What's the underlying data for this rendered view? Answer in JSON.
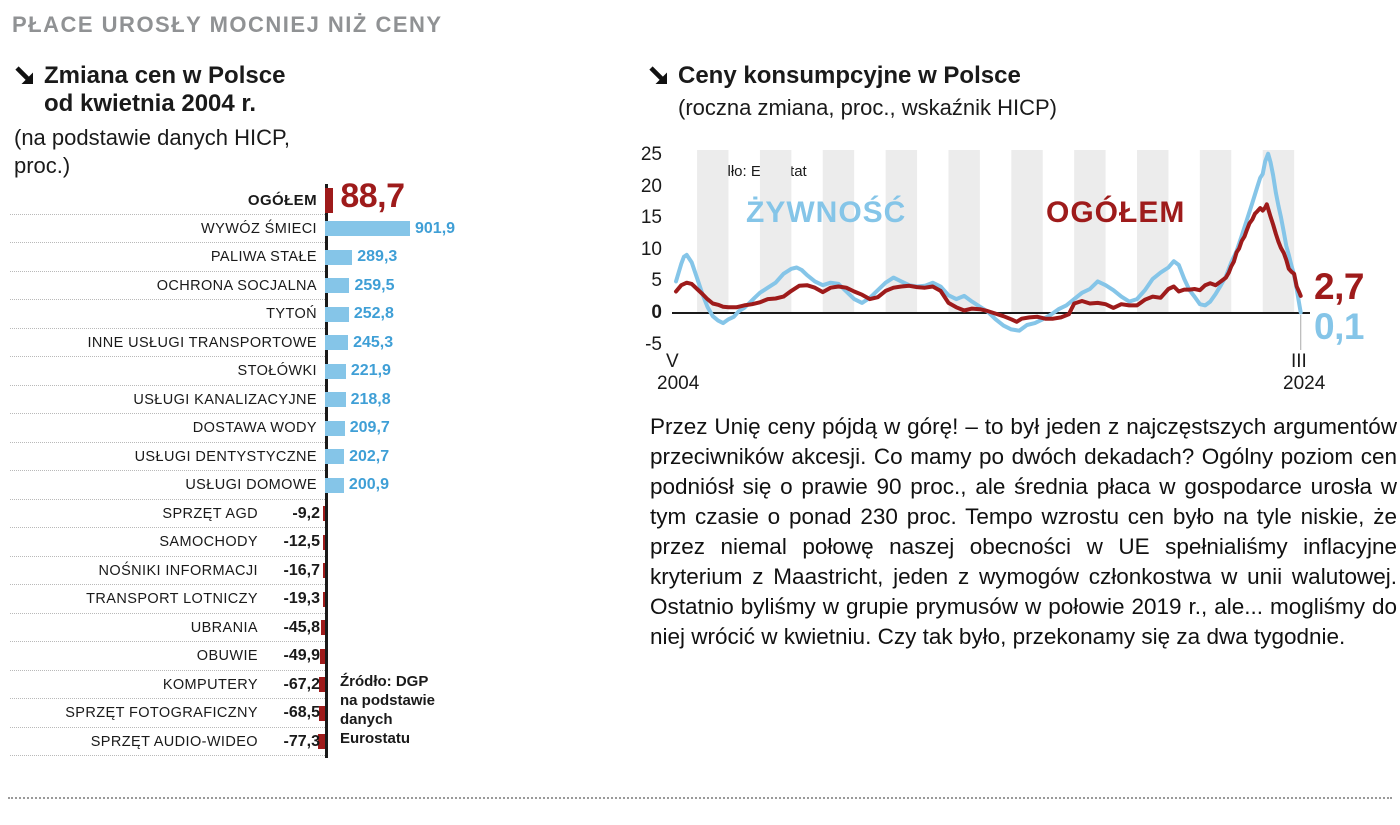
{
  "page_title": "PŁACE UROSŁY MOCNIEJ NIŻ CENY",
  "colors": {
    "bar_blue": "#85c5e8",
    "value_blue": "#3f9fd6",
    "dark_red": "#9e1b1b",
    "header_gray": "#909294",
    "axis_black": "#1a1a1a"
  },
  "left_chart": {
    "title_line1": "Zmiana cen w Polsce",
    "title_line2": "od kwietnia 2004 r.",
    "subtitle_line1": "(na podstawie danych HICP,",
    "subtitle_line2": "proc.)",
    "source_lines": [
      "Źródło: DGP",
      "na podstawie",
      "danych",
      "Eurostatu"
    ]
  },
  "right_chart": {
    "title": "Ceny konsumpcyjne w Polsce",
    "subtitle": "(roczna zmiana, proc., wskaźnik HICP)",
    "source": "Źródło: Eurostat",
    "label_food": "ŻYWNOŚĆ",
    "label_total": "OGÓŁEM",
    "end_value_total": "2,7",
    "end_value_food": "0,1",
    "x_start_top": "V",
    "x_start_bottom": "2004",
    "x_end_top": "III",
    "x_end_bottom": "2024"
  },
  "paragraph": "Przez Unię ceny pójdą w górę! – to był jeden z najczęstszych argumentów przeciwników akcesji. Co mamy po dwóch dekadach? Ogólny poziom cen podniósł się o prawie 90 proc., ale średnia płaca w gospodarce urosła w tym czasie o ponad 230 proc. Tempo wzrostu cen było na tyle niskie, że przez niemal połowę naszej obecności w UE spełnialiśmy inflacyjne kryterium z Maastricht, jeden z wymogów członkostwa w unii walutowej. Ostatnio byliśmy w grupie prymusów w połowie 2019 r., ale... mogliśmy do niej wrócić w kwietniu. Czy tak było, przekonamy się za dwa tygodnie.",
  "chart_data": [
    {
      "type": "bar",
      "orientation": "horizontal",
      "title": "Zmiana cen w Polsce od kwietnia 2004 r. (na podstawie danych HICP, proc.)",
      "source": "Źródło: DGP na podstawie danych Eurostatu",
      "highlight_category": "OGÓŁEM",
      "categories": [
        "OGÓŁEM",
        "WYWÓZ ŚMIECI",
        "PALIWA STAŁE",
        "OCHRONA SOCJALNA",
        "TYTOŃ",
        "INNE USŁUGI TRANSPORTOWE",
        "STOŁÓWKI",
        "USŁUGI KANALIZACYJNE",
        "DOSTAWA WODY",
        "USŁUGI DENTYSTYCZNE",
        "USŁUGI DOMOWE",
        "SPRZĘT AGD",
        "SAMOCHODY",
        "NOŚNIKI INFORMACJI",
        "TRANSPORT LOTNICZY",
        "UBRANIA",
        "OBUWIE",
        "KOMPUTERY",
        "SPRZĘT FOTOGRAFICZNY",
        "SPRZĘT AUDIO-WIDEO"
      ],
      "values": [
        88.7,
        901.9,
        289.3,
        259.5,
        252.8,
        245.3,
        221.9,
        218.8,
        209.7,
        202.7,
        200.9,
        -9.2,
        -12.5,
        -16.7,
        -19.3,
        -45.8,
        -49.9,
        -67.2,
        -68.5,
        -77.3
      ],
      "display_values": [
        "88,7",
        "901,9",
        "289,3",
        "259,5",
        "252,8",
        "245,3",
        "221,9",
        "218,8",
        "209,7",
        "202,7",
        "200,9",
        "-9,2",
        "-12,5",
        "-16,7",
        "-19,3",
        "-45,8",
        "-49,9",
        "-67,2",
        "-68,5",
        "-77,3"
      ]
    },
    {
      "type": "line",
      "title": "Ceny konsumpcyjne w Polsce",
      "subtitle": "(roczna zmiana, proc., wskaźnik HICP)",
      "source": "Źródło: Eurostat",
      "ylim": [
        -5,
        25
      ],
      "yticks": [
        25,
        20,
        15,
        10,
        5,
        0,
        -5
      ],
      "x_range": [
        "V 2004",
        "III 2024"
      ],
      "legend_position": "inside-top",
      "grid": "alternating-year-bands",
      "series": [
        {
          "name": "ŻYWNOŚĆ",
          "color": "#85c5e8",
          "end_label": "0,1",
          "points": [
            [
              2004.33,
              5.0
            ],
            [
              2004.5,
              7.8
            ],
            [
              2004.58,
              8.9
            ],
            [
              2004.67,
              9.2
            ],
            [
              2004.83,
              8.0
            ],
            [
              2005.0,
              5.5
            ],
            [
              2005.17,
              3.0
            ],
            [
              2005.33,
              1.0
            ],
            [
              2005.5,
              -0.5
            ],
            [
              2005.67,
              -1.2
            ],
            [
              2005.83,
              -1.6
            ],
            [
              2006.0,
              -1.0
            ],
            [
              2006.17,
              -0.6
            ],
            [
              2006.33,
              0.3
            ],
            [
              2006.5,
              0.8
            ],
            [
              2006.67,
              1.6
            ],
            [
              2006.83,
              2.4
            ],
            [
              2007.0,
              3.2
            ],
            [
              2007.25,
              4.0
            ],
            [
              2007.5,
              4.8
            ],
            [
              2007.75,
              6.2
            ],
            [
              2008.0,
              7.0
            ],
            [
              2008.17,
              7.2
            ],
            [
              2008.33,
              6.8
            ],
            [
              2008.5,
              6.0
            ],
            [
              2008.75,
              5.0
            ],
            [
              2009.0,
              4.4
            ],
            [
              2009.25,
              4.8
            ],
            [
              2009.5,
              4.6
            ],
            [
              2009.75,
              3.4
            ],
            [
              2010.0,
              2.2
            ],
            [
              2010.25,
              1.6
            ],
            [
              2010.5,
              2.4
            ],
            [
              2010.75,
              3.6
            ],
            [
              2011.0,
              4.8
            ],
            [
              2011.25,
              5.6
            ],
            [
              2011.5,
              5.0
            ],
            [
              2011.75,
              4.4
            ],
            [
              2012.0,
              4.2
            ],
            [
              2012.25,
              4.3
            ],
            [
              2012.5,
              4.8
            ],
            [
              2012.75,
              4.2
            ],
            [
              2013.0,
              2.8
            ],
            [
              2013.25,
              2.2
            ],
            [
              2013.5,
              2.7
            ],
            [
              2013.75,
              1.8
            ],
            [
              2014.0,
              1.0
            ],
            [
              2014.25,
              0.2
            ],
            [
              2014.5,
              -1.0
            ],
            [
              2014.75,
              -2.0
            ],
            [
              2015.0,
              -2.6
            ],
            [
              2015.25,
              -2.8
            ],
            [
              2015.5,
              -1.9
            ],
            [
              2015.75,
              -1.6
            ],
            [
              2016.0,
              -1.0
            ],
            [
              2016.25,
              -0.3
            ],
            [
              2016.5,
              0.6
            ],
            [
              2016.75,
              1.2
            ],
            [
              2017.0,
              2.2
            ],
            [
              2017.25,
              3.2
            ],
            [
              2017.5,
              3.8
            ],
            [
              2017.75,
              5.0
            ],
            [
              2018.0,
              4.4
            ],
            [
              2018.25,
              3.6
            ],
            [
              2018.5,
              2.6
            ],
            [
              2018.75,
              1.8
            ],
            [
              2019.0,
              2.2
            ],
            [
              2019.25,
              3.6
            ],
            [
              2019.5,
              5.4
            ],
            [
              2019.75,
              6.4
            ],
            [
              2020.0,
              7.2
            ],
            [
              2020.17,
              8.2
            ],
            [
              2020.33,
              7.6
            ],
            [
              2020.5,
              5.4
            ],
            [
              2020.67,
              3.6
            ],
            [
              2020.83,
              2.6
            ],
            [
              2021.0,
              1.4
            ],
            [
              2021.17,
              1.2
            ],
            [
              2021.33,
              1.8
            ],
            [
              2021.5,
              3.0
            ],
            [
              2021.67,
              4.4
            ],
            [
              2021.83,
              5.8
            ],
            [
              2022.0,
              8.0
            ],
            [
              2022.17,
              9.8
            ],
            [
              2022.33,
              12.2
            ],
            [
              2022.5,
              14.8
            ],
            [
              2022.67,
              17.4
            ],
            [
              2022.83,
              20.0
            ],
            [
              2022.92,
              21.4
            ],
            [
              2023.0,
              22.0
            ],
            [
              2023.08,
              24.0
            ],
            [
              2023.17,
              25.2
            ],
            [
              2023.25,
              23.8
            ],
            [
              2023.33,
              21.8
            ],
            [
              2023.42,
              19.0
            ],
            [
              2023.5,
              17.0
            ],
            [
              2023.58,
              15.2
            ],
            [
              2023.67,
              12.8
            ],
            [
              2023.75,
              10.6
            ],
            [
              2023.83,
              9.2
            ],
            [
              2023.92,
              7.4
            ],
            [
              2024.0,
              6.0
            ],
            [
              2024.08,
              3.8
            ],
            [
              2024.17,
              1.2
            ],
            [
              2024.21,
              0.1
            ]
          ]
        },
        {
          "name": "OGÓŁEM",
          "color": "#9e1b1b",
          "end_label": "2,7",
          "points": [
            [
              2004.33,
              3.4
            ],
            [
              2004.5,
              4.4
            ],
            [
              2004.67,
              4.8
            ],
            [
              2004.83,
              4.6
            ],
            [
              2005.0,
              3.8
            ],
            [
              2005.17,
              3.0
            ],
            [
              2005.33,
              2.2
            ],
            [
              2005.5,
              1.5
            ],
            [
              2005.67,
              1.3
            ],
            [
              2005.83,
              1.0
            ],
            [
              2006.0,
              0.9
            ],
            [
              2006.25,
              0.9
            ],
            [
              2006.5,
              1.2
            ],
            [
              2006.75,
              1.4
            ],
            [
              2007.0,
              1.7
            ],
            [
              2007.25,
              2.2
            ],
            [
              2007.5,
              2.3
            ],
            [
              2007.75,
              2.6
            ],
            [
              2008.0,
              3.5
            ],
            [
              2008.25,
              4.3
            ],
            [
              2008.5,
              4.4
            ],
            [
              2008.75,
              4.0
            ],
            [
              2009.0,
              3.3
            ],
            [
              2009.25,
              4.0
            ],
            [
              2009.5,
              4.2
            ],
            [
              2009.75,
              4.0
            ],
            [
              2010.0,
              3.4
            ],
            [
              2010.25,
              2.9
            ],
            [
              2010.5,
              2.2
            ],
            [
              2010.75,
              2.5
            ],
            [
              2011.0,
              3.5
            ],
            [
              2011.25,
              4.0
            ],
            [
              2011.5,
              4.2
            ],
            [
              2011.75,
              4.3
            ],
            [
              2012.0,
              4.1
            ],
            [
              2012.25,
              4.0
            ],
            [
              2012.5,
              4.2
            ],
            [
              2012.75,
              3.5
            ],
            [
              2013.0,
              1.6
            ],
            [
              2013.25,
              0.9
            ],
            [
              2013.5,
              0.4
            ],
            [
              2013.75,
              0.7
            ],
            [
              2014.0,
              0.6
            ],
            [
              2014.25,
              0.3
            ],
            [
              2014.5,
              -0.1
            ],
            [
              2014.75,
              -0.5
            ],
            [
              2015.0,
              -1.0
            ],
            [
              2015.17,
              -1.4
            ],
            [
              2015.33,
              -0.9
            ],
            [
              2015.58,
              -0.7
            ],
            [
              2015.83,
              -0.6
            ],
            [
              2016.08,
              -0.9
            ],
            [
              2016.33,
              -0.9
            ],
            [
              2016.58,
              -0.7
            ],
            [
              2016.83,
              -0.2
            ],
            [
              2017.0,
              1.5
            ],
            [
              2017.25,
              1.9
            ],
            [
              2017.5,
              1.5
            ],
            [
              2017.75,
              1.6
            ],
            [
              2018.0,
              1.4
            ],
            [
              2018.25,
              0.8
            ],
            [
              2018.5,
              1.4
            ],
            [
              2018.75,
              1.2
            ],
            [
              2019.0,
              1.2
            ],
            [
              2019.25,
              2.1
            ],
            [
              2019.5,
              2.6
            ],
            [
              2019.75,
              2.4
            ],
            [
              2020.0,
              3.8
            ],
            [
              2020.17,
              4.2
            ],
            [
              2020.33,
              3.4
            ],
            [
              2020.5,
              3.7
            ],
            [
              2020.67,
              3.7
            ],
            [
              2020.83,
              3.8
            ],
            [
              2021.0,
              3.6
            ],
            [
              2021.17,
              4.4
            ],
            [
              2021.33,
              4.7
            ],
            [
              2021.5,
              4.4
            ],
            [
              2021.67,
              5.0
            ],
            [
              2021.83,
              5.6
            ],
            [
              2021.92,
              6.4
            ],
            [
              2022.0,
              7.4
            ],
            [
              2022.08,
              8.1
            ],
            [
              2022.17,
              9.6
            ],
            [
              2022.25,
              10.2
            ],
            [
              2022.33,
              11.4
            ],
            [
              2022.42,
              12.1
            ],
            [
              2022.5,
              13.2
            ],
            [
              2022.58,
              14.2
            ],
            [
              2022.67,
              14.8
            ],
            [
              2022.75,
              15.7
            ],
            [
              2022.83,
              16.1
            ],
            [
              2022.92,
              16.6
            ],
            [
              2023.0,
              16.2
            ],
            [
              2023.08,
              16.7
            ],
            [
              2023.13,
              17.2
            ],
            [
              2023.25,
              15.2
            ],
            [
              2023.33,
              14.0
            ],
            [
              2023.42,
              12.5
            ],
            [
              2023.5,
              11.3
            ],
            [
              2023.58,
              10.3
            ],
            [
              2023.67,
              9.5
            ],
            [
              2023.75,
              8.4
            ],
            [
              2023.83,
              7.0
            ],
            [
              2023.92,
              6.5
            ],
            [
              2024.0,
              6.2
            ],
            [
              2024.08,
              4.2
            ],
            [
              2024.17,
              3.2
            ],
            [
              2024.21,
              2.7
            ]
          ]
        }
      ]
    }
  ]
}
